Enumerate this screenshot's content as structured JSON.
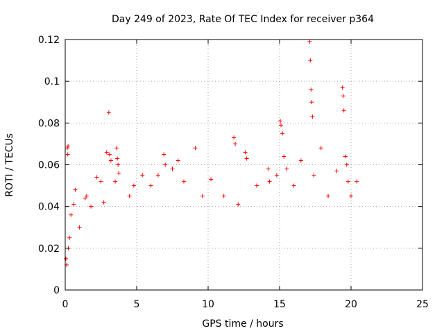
{
  "chart_data": {
    "type": "scatter",
    "title": "Day 249 of 2023, Rate Of TEC Index for receiver p364",
    "xlabel": "GPS time / hours",
    "ylabel": "ROTI / TECUs",
    "xlim": [
      0,
      25
    ],
    "ylim": [
      0,
      0.12
    ],
    "x_ticks": [
      0,
      5,
      10,
      15,
      20,
      25
    ],
    "y_ticks": [
      0,
      0.02,
      0.04,
      0.06,
      0.08,
      0.1,
      0.12
    ],
    "x_tick_labels": [
      "0",
      "5",
      "10",
      "15",
      "20",
      "25"
    ],
    "y_tick_labels": [
      "0",
      "0.02",
      "0.04",
      "0.06",
      "0.08",
      "0.1",
      "0.12"
    ],
    "grid": true,
    "marker": "+",
    "color": "#ff0000",
    "series": [
      {
        "points": [
          [
            0.05,
            0.015
          ],
          [
            0.1,
            0.012
          ],
          [
            0.15,
            0.068
          ],
          [
            0.18,
            0.065
          ],
          [
            0.2,
            0.069
          ],
          [
            0.22,
            0.02
          ],
          [
            0.3,
            0.025
          ],
          [
            0.4,
            0.036
          ],
          [
            0.6,
            0.041
          ],
          [
            0.7,
            0.048
          ],
          [
            1.0,
            0.03
          ],
          [
            1.4,
            0.044
          ],
          [
            1.5,
            0.045
          ],
          [
            1.8,
            0.04
          ],
          [
            2.2,
            0.054
          ],
          [
            2.5,
            0.052
          ],
          [
            2.7,
            0.042
          ],
          [
            2.9,
            0.066
          ],
          [
            3.05,
            0.085
          ],
          [
            3.1,
            0.065
          ],
          [
            3.2,
            0.062
          ],
          [
            3.5,
            0.052
          ],
          [
            3.6,
            0.068
          ],
          [
            3.65,
            0.063
          ],
          [
            3.7,
            0.06
          ],
          [
            3.75,
            0.056
          ],
          [
            4.5,
            0.045
          ],
          [
            4.8,
            0.05
          ],
          [
            5.4,
            0.055
          ],
          [
            6.0,
            0.05
          ],
          [
            6.5,
            0.055
          ],
          [
            6.9,
            0.065
          ],
          [
            7.0,
            0.06
          ],
          [
            7.5,
            0.058
          ],
          [
            7.9,
            0.062
          ],
          [
            8.3,
            0.052
          ],
          [
            9.1,
            0.068
          ],
          [
            9.6,
            0.045
          ],
          [
            10.2,
            0.053
          ],
          [
            11.1,
            0.045
          ],
          [
            11.8,
            0.073
          ],
          [
            11.9,
            0.07
          ],
          [
            12.1,
            0.041
          ],
          [
            12.6,
            0.066
          ],
          [
            12.7,
            0.063
          ],
          [
            13.4,
            0.05
          ],
          [
            14.2,
            0.058
          ],
          [
            14.3,
            0.052
          ],
          [
            14.8,
            0.055
          ],
          [
            15.05,
            0.081
          ],
          [
            15.1,
            0.079
          ],
          [
            15.2,
            0.075
          ],
          [
            15.3,
            0.064
          ],
          [
            15.5,
            0.058
          ],
          [
            16.0,
            0.05
          ],
          [
            16.5,
            0.062
          ],
          [
            17.1,
            0.119
          ],
          [
            17.15,
            0.11
          ],
          [
            17.2,
            0.096
          ],
          [
            17.25,
            0.09
          ],
          [
            17.3,
            0.083
          ],
          [
            17.4,
            0.055
          ],
          [
            17.9,
            0.068
          ],
          [
            18.4,
            0.045
          ],
          [
            19.0,
            0.057
          ],
          [
            19.4,
            0.097
          ],
          [
            19.45,
            0.093
          ],
          [
            19.5,
            0.086
          ],
          [
            19.6,
            0.064
          ],
          [
            19.7,
            0.06
          ],
          [
            19.8,
            0.052
          ],
          [
            20.0,
            0.045
          ],
          [
            20.4,
            0.052
          ]
        ]
      }
    ]
  }
}
